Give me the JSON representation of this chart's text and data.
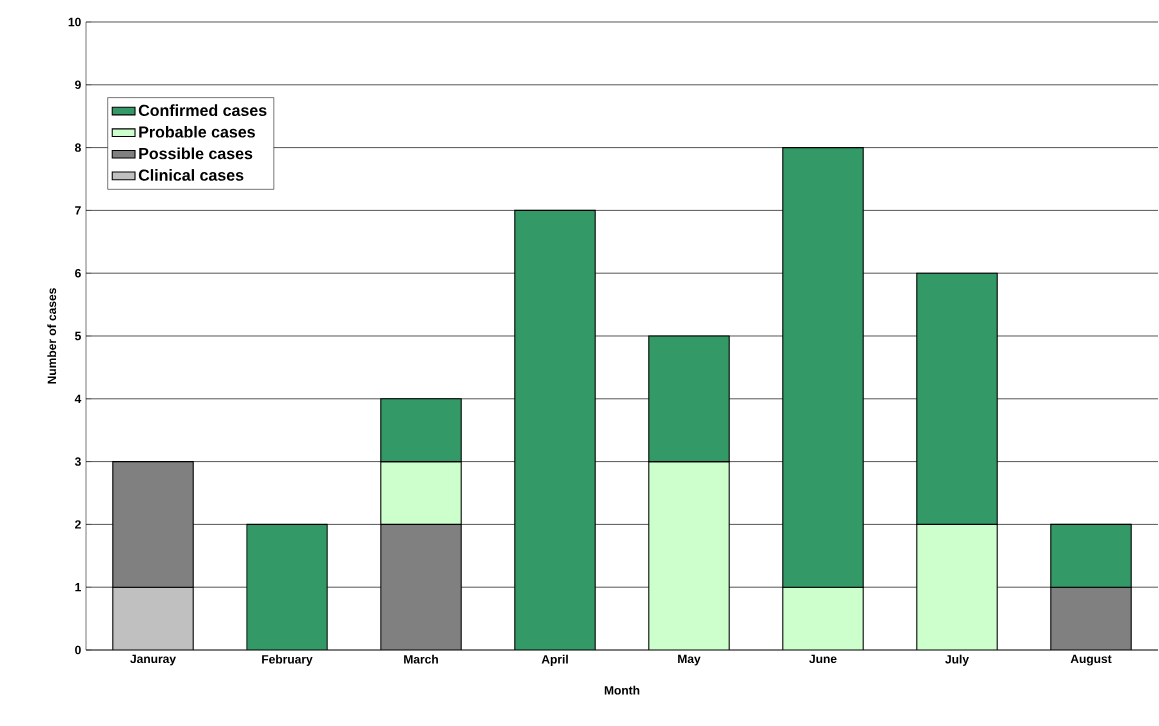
{
  "chart_data": {
    "type": "bar",
    "stacked": true,
    "xlabel": "Month",
    "ylabel": "Number of cases",
    "categories": [
      "Januray",
      "February",
      "March",
      "April",
      "May",
      "June",
      "July",
      "August"
    ],
    "series": [
      {
        "name": "Clinical cases",
        "color": "#c0c0c0",
        "values": [
          1,
          null,
          null,
          null,
          null,
          null,
          null,
          null
        ]
      },
      {
        "name": "Possible cases",
        "color": "#808080",
        "values": [
          2,
          null,
          2,
          null,
          null,
          null,
          null,
          1
        ]
      },
      {
        "name": "Probable cases",
        "color": "#ccffcc",
        "values": [
          null,
          null,
          1,
          null,
          3,
          1,
          2,
          null
        ]
      },
      {
        "name": "Confirmed cases",
        "color": "#339966",
        "values": [
          null,
          2,
          1,
          7,
          2,
          7,
          4,
          1
        ]
      }
    ],
    "ylim": [
      0,
      10
    ],
    "yticks": [
      0,
      1,
      2,
      3,
      4,
      5,
      6,
      7,
      8,
      9,
      10
    ],
    "grid": "y",
    "legend": "top left"
  }
}
